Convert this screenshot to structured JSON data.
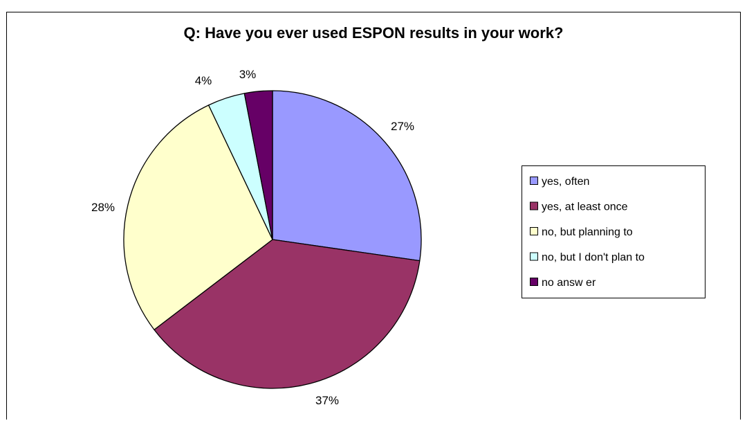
{
  "chart_data": {
    "type": "pie",
    "title": "Q: Have you ever used ESPON results in your work?",
    "categories": [
      "yes, often",
      "yes, at least once",
      "no, but planning to",
      "no, but I don't plan to",
      "no answ er"
    ],
    "values": [
      27,
      37,
      28,
      4,
      3
    ],
    "value_labels": [
      "27%",
      "37%",
      "28%",
      "4%",
      "3%"
    ],
    "colors": [
      "#9999ff",
      "#993366",
      "#ffffcc",
      "#ccffff",
      "#660066"
    ],
    "start_angle_deg": 0,
    "direction": "clockwise",
    "legend_position": "right"
  }
}
